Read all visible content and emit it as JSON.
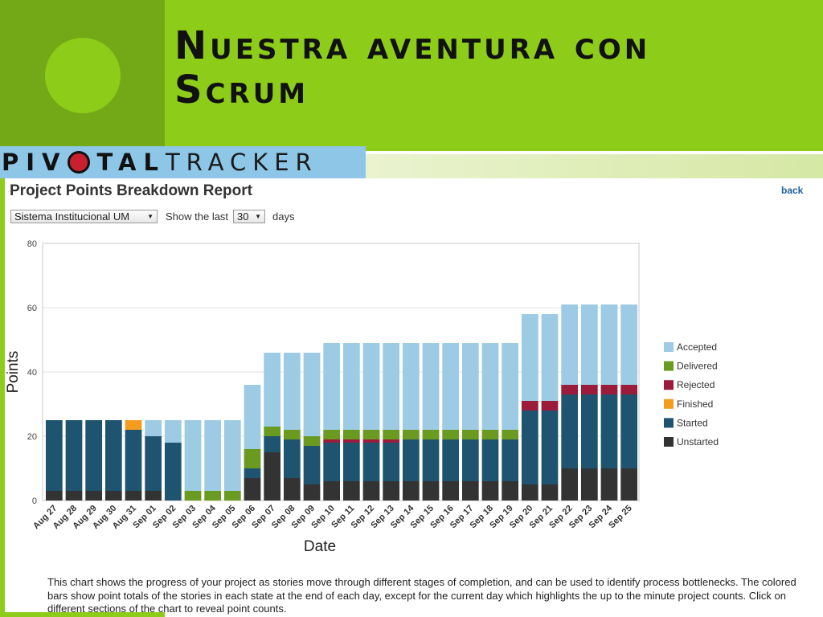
{
  "slide": {
    "title_line1": "Nuestra aventura con",
    "title_line2": "Scrum"
  },
  "logo": {
    "part1": "PIV",
    "part2": "TAL",
    "part3": "TRACKER",
    "o_color": "#c8202f"
  },
  "report": {
    "title": "Project Points Breakdown Report",
    "back_label": "back",
    "project_select": "Sistema Institucional UM",
    "show_label": "Show the last",
    "days_select": "30",
    "days_label": "days",
    "description": "This chart shows the progress of your project as stories move through different stages of completion, and can be used to identify process bottlenecks. The colored bars show point totals of the stories in each state at the end of each day, except for the current day which highlights the up to the minute project counts. Click on different sections of the chart to reveal point counts."
  },
  "chart_data": {
    "type": "bar",
    "stacked": true,
    "xlabel": "Date",
    "ylabel": "Points",
    "ylim": [
      0,
      80
    ],
    "yticks": [
      0,
      20,
      40,
      60,
      80
    ],
    "grid": true,
    "legend_position": "right",
    "categories": [
      "Aug 27",
      "Aug 28",
      "Aug 29",
      "Aug 30",
      "Aug 31",
      "Sep 01",
      "Sep 02",
      "Sep 03",
      "Sep 04",
      "Sep 05",
      "Sep 06",
      "Sep 07",
      "Sep 08",
      "Sep 09",
      "Sep 10",
      "Sep 11",
      "Sep 12",
      "Sep 13",
      "Sep 14",
      "Sep 15",
      "Sep 16",
      "Sep 17",
      "Sep 18",
      "Sep 19",
      "Sep 20",
      "Sep 21",
      "Sep 22",
      "Sep 23",
      "Sep 24",
      "Sep 25"
    ],
    "series": [
      {
        "name": "Unstarted",
        "color": "#333333",
        "values": [
          3,
          3,
          3,
          3,
          3,
          3,
          0,
          0,
          0,
          0,
          7,
          15,
          7,
          5,
          6,
          6,
          6,
          6,
          6,
          6,
          6,
          6,
          6,
          6,
          5,
          5,
          10,
          10,
          10,
          10
        ]
      },
      {
        "name": "Started",
        "color": "#1e5470",
        "values": [
          22,
          22,
          22,
          22,
          19,
          17,
          18,
          0,
          0,
          0,
          3,
          5,
          12,
          12,
          12,
          12,
          12,
          12,
          13,
          13,
          13,
          13,
          13,
          13,
          23,
          23,
          23,
          23,
          23,
          23
        ]
      },
      {
        "name": "Finished",
        "color": "#f39c1e",
        "values": [
          0,
          0,
          0,
          0,
          3,
          0,
          0,
          0,
          0,
          0,
          0,
          0,
          0,
          0,
          0,
          0,
          0,
          0,
          0,
          0,
          0,
          0,
          0,
          0,
          0,
          0,
          0,
          0,
          0,
          0
        ]
      },
      {
        "name": "Rejected",
        "color": "#9b1b3a",
        "values": [
          0,
          0,
          0,
          0,
          0,
          0,
          0,
          0,
          0,
          0,
          0,
          0,
          0,
          0,
          1,
          1,
          1,
          1,
          0,
          0,
          0,
          0,
          0,
          0,
          3,
          3,
          3,
          3,
          3,
          3
        ]
      },
      {
        "name": "Delivered",
        "color": "#6a9a1f",
        "values": [
          0,
          0,
          0,
          0,
          0,
          0,
          0,
          3,
          3,
          3,
          6,
          3,
          3,
          3,
          3,
          3,
          3,
          3,
          3,
          3,
          3,
          3,
          3,
          3,
          0,
          0,
          0,
          0,
          0,
          0
        ]
      },
      {
        "name": "Accepted",
        "color": "#9ccbe3",
        "values": [
          0,
          0,
          0,
          0,
          0,
          5,
          7,
          22,
          22,
          22,
          20,
          23,
          24,
          26,
          27,
          27,
          27,
          27,
          27,
          27,
          27,
          27,
          27,
          27,
          27,
          27,
          25,
          25,
          25,
          25
        ]
      }
    ],
    "legend_order": [
      "Accepted",
      "Delivered",
      "Rejected",
      "Finished",
      "Started",
      "Unstarted"
    ]
  }
}
